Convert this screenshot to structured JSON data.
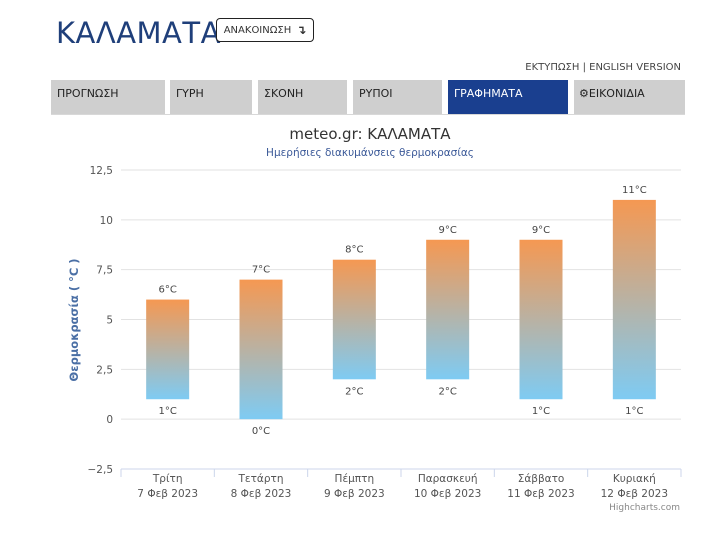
{
  "header": {
    "title": "ΚΑΛΑΜΑΤΑ",
    "announce_label": "ΑΝΑΚΟΙΝΩΣΗ",
    "announce_icon": "arrow-down-icon",
    "print_label": "ΕΚΤΥΠΩΣΗ",
    "separator": " | ",
    "english_label": "ENGLISH VERSION"
  },
  "tabs": [
    {
      "label": "ΠΡΟΓΝΩΣΗ"
    },
    {
      "label": "ΓΥΡΗ"
    },
    {
      "label": "ΣΚΟΝΗ"
    },
    {
      "label": "ΡΥΠΟΙ"
    },
    {
      "label": "ΓΡΑΦΗΜΑΤΑ",
      "active": true
    },
    {
      "label": "ΕΙΚΟΝΙΔΙΑ",
      "icon": "gear-icon"
    }
  ],
  "colors": {
    "accent": "#1a3f8f",
    "tab_bg": "#cfcfcf",
    "bar_top": "#f59852",
    "bar_bottom": "#7ecbf3"
  },
  "chart_data": {
    "type": "bar",
    "title": "meteo.gr: ΚΑΛΑΜΑΤΑ",
    "subtitle": "Ημερήσιες διακυμάνσεις θερμοκρασίας",
    "ylabel": "Θερμοκρασία ( °C )",
    "xlabel": "",
    "ylim": [
      -2.5,
      12.5
    ],
    "yticks": [
      "−2,5",
      "0",
      "2,5",
      "5",
      "7,5",
      "10",
      "12,5"
    ],
    "categories": [
      {
        "day": "Τρίτη",
        "date": "7 Φεβ 2023"
      },
      {
        "day": "Τετάρτη",
        "date": "8 Φεβ 2023"
      },
      {
        "day": "Πέμπτη",
        "date": "9 Φεβ 2023"
      },
      {
        "day": "Παρασκευή",
        "date": "10 Φεβ 2023"
      },
      {
        "day": "Σάββατο",
        "date": "11 Φεβ 2023"
      },
      {
        "day": "Κυριακή",
        "date": "12 Φεβ 2023"
      }
    ],
    "series": [
      {
        "low": 1,
        "high": 6,
        "low_label": "1°C",
        "high_label": "6°C"
      },
      {
        "low": 0,
        "high": 7,
        "low_label": "0°C",
        "high_label": "7°C"
      },
      {
        "low": 2,
        "high": 8,
        "low_label": "2°C",
        "high_label": "8°C"
      },
      {
        "low": 2,
        "high": 9,
        "low_label": "2°C",
        "high_label": "9°C"
      },
      {
        "low": 1,
        "high": 9,
        "low_label": "1°C",
        "high_label": "9°C"
      },
      {
        "low": 1,
        "high": 11,
        "low_label": "1°C",
        "high_label": "11°C"
      }
    ],
    "grid": true,
    "legend": "none",
    "credits": "Highcharts.com"
  }
}
